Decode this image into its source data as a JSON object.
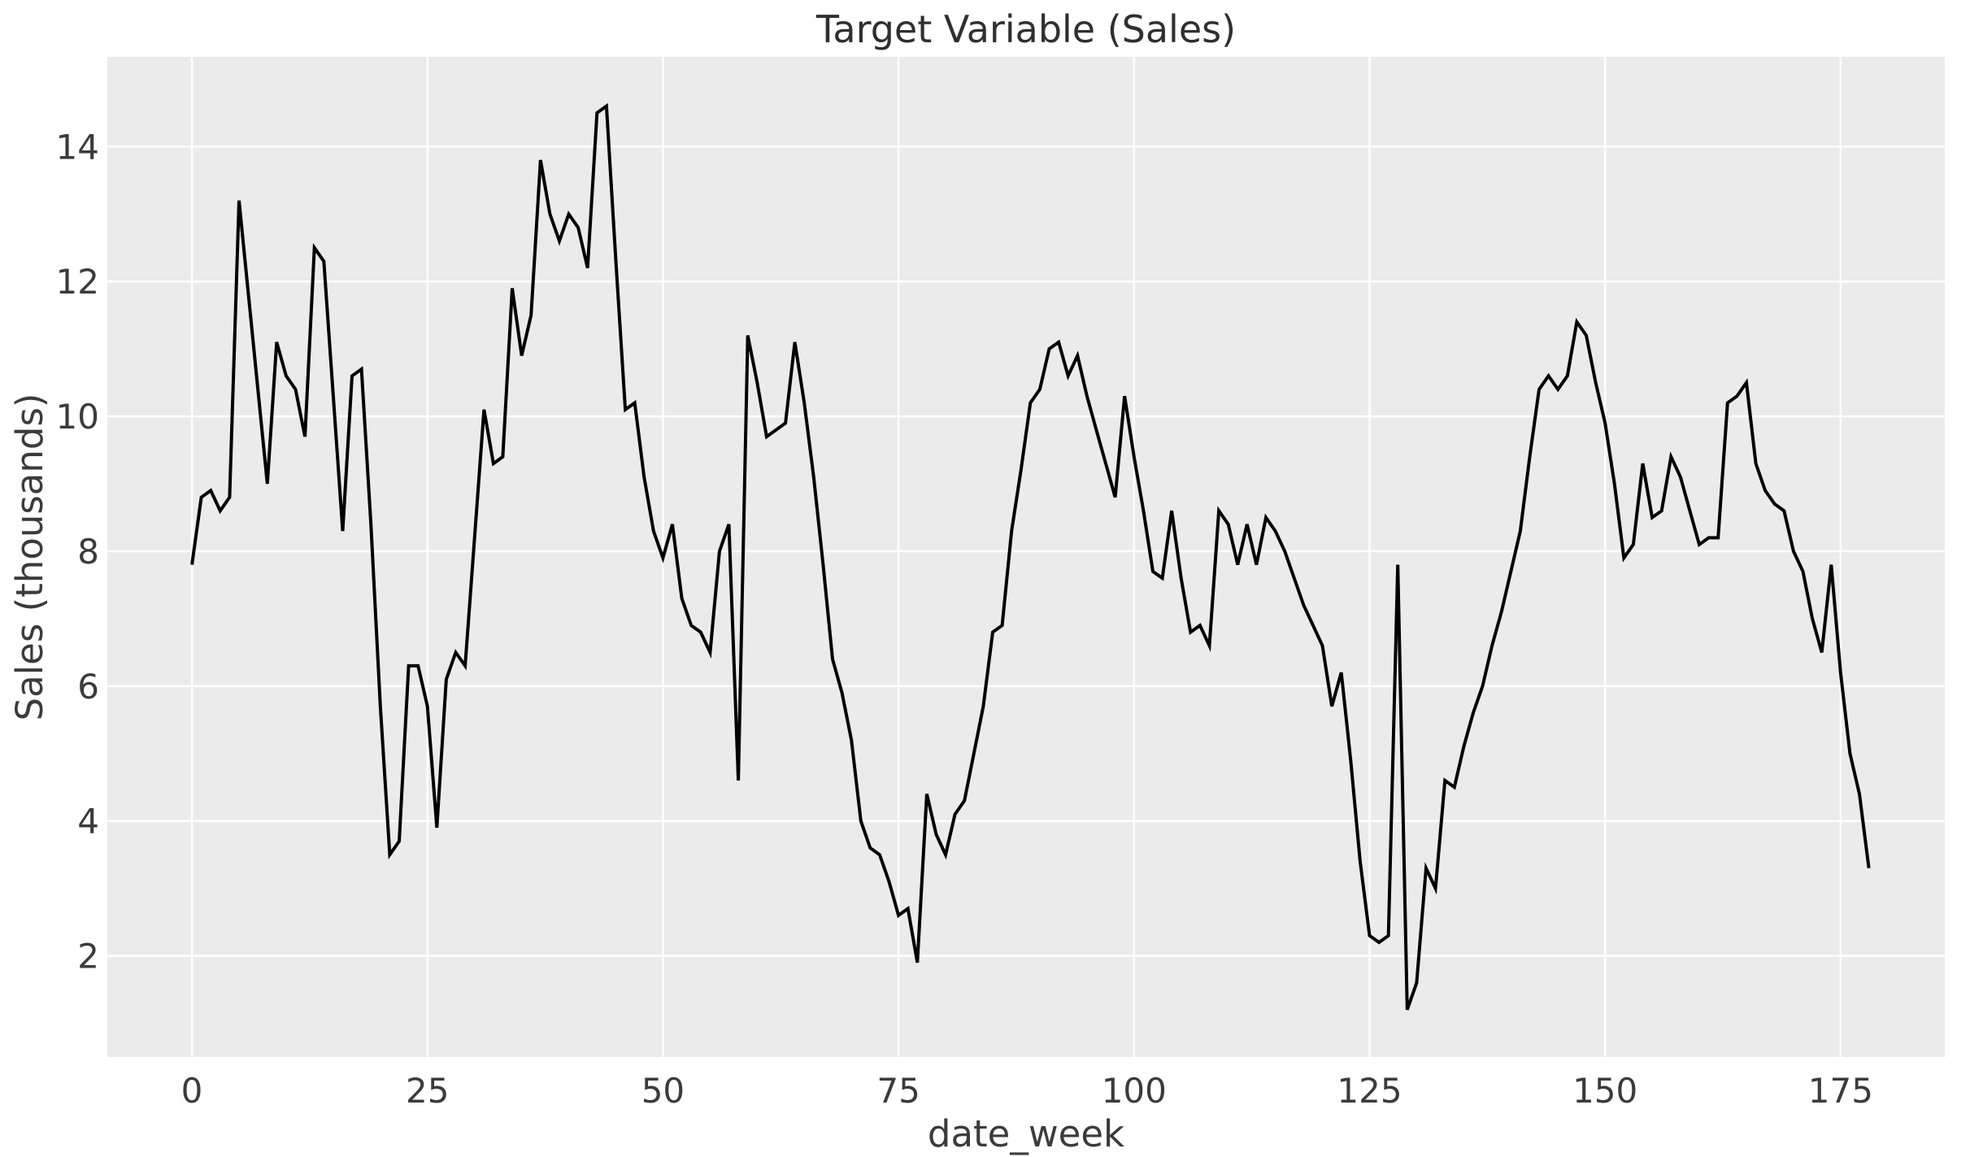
{
  "title": "Target Variable (Sales)",
  "chart_data": {
    "type": "line",
    "title": "Target Variable (Sales)",
    "xlabel": "date_week",
    "ylabel": "Sales (thousands)",
    "legend": null,
    "grid": true,
    "xlim": [
      -8.98,
      186.06
    ],
    "ylim": [
      0.5,
      15.33
    ],
    "xticks": [
      0,
      25,
      50,
      75,
      100,
      125,
      150,
      175
    ],
    "yticks": [
      2,
      4,
      6,
      8,
      10,
      12,
      14
    ],
    "colors": {
      "figure_bg": "#ffffff",
      "panel_bg": "#ebebeb",
      "grid_color": "#ffffff",
      "line_color": "#000000",
      "tick_text": "#3b3b3b",
      "title_text": "#2f2f2f"
    },
    "series": [
      {
        "name": "Sales",
        "x_start": 0,
        "x_step": 1,
        "values": [
          7.8,
          8.8,
          8.9,
          8.6,
          8.8,
          13.2,
          11.8,
          10.4,
          9.0,
          11.1,
          10.6,
          10.4,
          9.7,
          12.5,
          12.3,
          10.3,
          8.3,
          10.6,
          10.7,
          8.4,
          5.7,
          3.5,
          3.7,
          6.3,
          6.3,
          5.7,
          3.9,
          6.1,
          6.5,
          6.3,
          8.2,
          10.1,
          9.3,
          9.4,
          11.9,
          10.9,
          11.5,
          13.8,
          13.0,
          12.6,
          13.0,
          12.8,
          12.2,
          14.5,
          14.6,
          12.3,
          10.1,
          10.2,
          9.1,
          8.3,
          7.9,
          8.4,
          7.3,
          6.9,
          6.8,
          6.5,
          8.0,
          8.4,
          4.6,
          11.2,
          10.5,
          9.7,
          9.8,
          9.9,
          11.1,
          10.2,
          9.1,
          7.8,
          6.4,
          5.9,
          5.2,
          4.0,
          3.6,
          3.5,
          3.1,
          2.6,
          2.7,
          1.9,
          4.4,
          3.8,
          3.5,
          4.1,
          4.3,
          5.0,
          5.7,
          6.8,
          6.9,
          8.3,
          9.2,
          10.2,
          10.4,
          11.0,
          11.1,
          10.6,
          10.9,
          10.3,
          9.8,
          9.3,
          8.8,
          10.3,
          9.4,
          8.6,
          7.7,
          7.6,
          8.6,
          7.6,
          6.8,
          6.9,
          6.6,
          8.6,
          8.4,
          7.8,
          8.4,
          7.8,
          8.5,
          8.3,
          8.0,
          7.6,
          7.2,
          6.9,
          6.6,
          5.7,
          6.2,
          4.9,
          3.4,
          2.3,
          2.2,
          2.3,
          7.8,
          1.2,
          1.6,
          3.3,
          3.0,
          4.6,
          4.5,
          5.1,
          5.6,
          6.0,
          6.6,
          7.1,
          7.7,
          8.3,
          9.4,
          10.4,
          10.6,
          10.4,
          10.6,
          11.4,
          11.2,
          10.5,
          9.9,
          9.0,
          7.9,
          8.1,
          9.3,
          8.5,
          8.6,
          9.4,
          9.1,
          8.6,
          8.1,
          8.2,
          8.2,
          10.2,
          10.3,
          10.5,
          9.3,
          8.9,
          8.7,
          8.6,
          8.0,
          7.7,
          7.0,
          6.5,
          7.8,
          6.2,
          5.0,
          4.4,
          3.3
        ]
      }
    ]
  }
}
